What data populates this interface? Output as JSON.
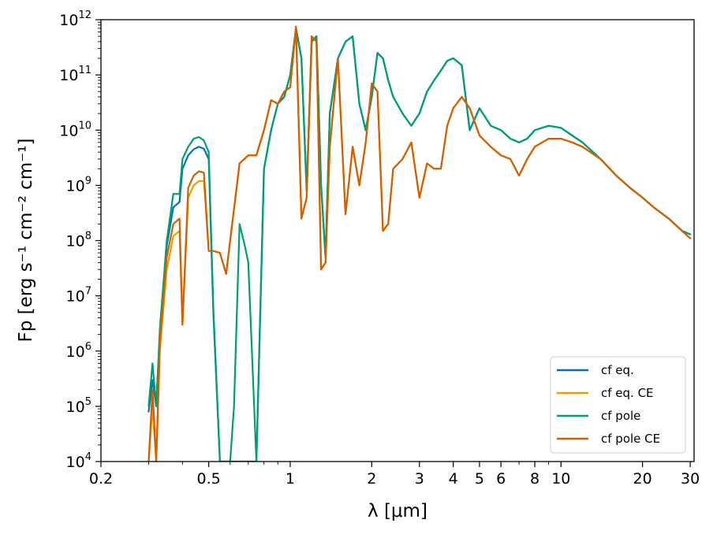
{
  "chart_data": {
    "type": "line",
    "title": "",
    "xlabel": "λ [μm]",
    "ylabel": "Fp [erg s⁻¹ cm⁻² cm⁻¹]",
    "xscale": "log",
    "yscale": "log",
    "xlim": [
      0.2,
      31
    ],
    "ylim": [
      10000,
      1000000000000
    ],
    "grid": false,
    "legend_position": "lower-right",
    "x_ticks": [
      0.2,
      0.5,
      1,
      2,
      3,
      4,
      5,
      6,
      8,
      10,
      20,
      30
    ],
    "x_tick_labels": [
      "0.2",
      "0.5",
      "1",
      "2",
      "3",
      "4",
      "5",
      "6",
      "8",
      "10",
      "20",
      "30"
    ],
    "y_tick_exponents": [
      4,
      5,
      6,
      7,
      8,
      9,
      10,
      11,
      12
    ],
    "y_tick_base": "10",
    "series": [
      {
        "name": "cf eq.",
        "color": "#0072B2",
        "x": [
          0.3,
          0.31,
          0.32,
          0.33,
          0.35,
          0.37,
          0.39,
          0.4,
          0.42,
          0.44,
          0.46,
          0.48,
          0.5,
          0.52,
          0.55,
          0.6,
          0.65,
          0.7,
          0.75,
          0.8,
          0.85,
          0.9,
          0.95,
          1.0,
          1.05,
          1.1,
          1.15,
          1.2,
          1.25,
          1.3,
          1.35,
          1.4,
          1.5,
          1.6,
          1.7,
          1.8,
          1.9,
          2.0,
          2.1,
          2.2,
          2.3,
          2.4,
          2.6,
          2.8,
          3.0,
          3.2,
          3.4,
          3.6,
          3.8,
          4.0,
          4.3,
          4.6,
          5.0,
          5.5,
          6.0,
          6.5,
          7.0,
          7.5,
          8.0,
          9.0,
          10.0,
          11.0,
          12.0,
          14.0,
          16.0,
          18.0,
          20.0,
          22.0,
          25.0,
          28.0,
          30.0
        ],
        "y": [
          80000,
          300000,
          100000,
          2000000,
          80000000,
          400000000,
          500000000,
          2000000000,
          3500000000,
          4500000000,
          5000000000,
          4600000000,
          3000000000,
          5000000,
          10000,
          10000,
          10000,
          10000,
          10000,
          2000000000,
          10000000000,
          30000000000,
          40000000000,
          100000000000,
          700000000000,
          200000000000,
          800000000,
          400000000000,
          500000000000,
          1000000000,
          50000000,
          20000000000,
          200000000000,
          400000000000,
          500000000000,
          30000000000,
          10000000000,
          40000000000,
          250000000000,
          200000000000,
          80000000000,
          40000000000,
          20000000000,
          12000000000,
          20000000000,
          50000000000,
          80000000000,
          120000000000,
          180000000000,
          200000000000,
          150000000000,
          10000000000,
          25000000000,
          12000000000,
          10000000000,
          7000000000,
          6000000000,
          7000000000,
          10000000000,
          12000000000,
          11000000000,
          8000000000,
          6000000000,
          3000000000,
          1500000000,
          900000000,
          600000000,
          400000000,
          250000000,
          150000000,
          130000000
        ]
      },
      {
        "name": "cf eq. CE",
        "color": "#E69F00",
        "x": [
          0.3,
          0.31,
          0.32,
          0.33,
          0.35,
          0.37,
          0.39,
          0.4,
          0.42,
          0.44,
          0.46,
          0.48,
          0.5,
          0.52,
          0.55,
          0.58,
          0.6,
          0.65,
          0.7,
          0.75,
          0.8,
          0.85,
          0.9,
          0.95,
          1.0,
          1.05,
          1.1,
          1.15,
          1.2,
          1.25,
          1.3,
          1.35,
          1.4,
          1.5,
          1.6,
          1.7,
          1.8,
          1.9,
          2.0,
          2.1,
          2.2,
          2.3,
          2.4,
          2.6,
          2.8,
          3.0,
          3.2,
          3.4,
          3.6,
          3.8,
          4.0,
          4.3,
          4.6,
          5.0,
          5.5,
          6.0,
          6.5,
          7.0,
          7.5,
          8.0,
          9.0,
          10.0,
          11.0,
          12.0,
          14.0,
          16.0,
          18.0,
          20.0,
          22.0,
          25.0,
          28.0,
          30.0
        ],
        "y": [
          10000,
          100000,
          10000,
          1000000,
          30000000,
          120000000,
          150000000,
          3000000,
          600000000,
          1000000000,
          1200000000,
          1200000000,
          65000000,
          65000000,
          60000000,
          25000000,
          100000000,
          2500000000,
          3500000000,
          3500000000,
          10000000000,
          35000000000,
          30000000000,
          50000000000,
          60000000000,
          700000000000,
          250000000,
          600000000,
          500000000000,
          400000000000,
          30000000,
          40000000,
          5000000000,
          200000000000,
          300000000,
          5000000000,
          1000000000,
          6000000000,
          70000000000,
          50000000000,
          150000000,
          200000000,
          2000000000,
          3000000000,
          6000000000,
          600000000,
          2500000000,
          2000000000,
          2000000000,
          12000000000,
          25000000000,
          40000000000,
          25000000000,
          8000000000,
          5000000000,
          3500000000,
          3000000000,
          1500000000,
          3000000000,
          5000000000,
          7000000000,
          7000000000,
          6000000000,
          5000000000,
          3000000000,
          1500000000,
          900000000,
          600000000,
          400000000,
          250000000,
          150000000,
          110000000
        ]
      },
      {
        "name": "cf pole",
        "color": "#009E73",
        "x": [
          0.3,
          0.31,
          0.32,
          0.33,
          0.35,
          0.37,
          0.39,
          0.4,
          0.42,
          0.44,
          0.46,
          0.48,
          0.5,
          0.52,
          0.55,
          0.6,
          0.62,
          0.65,
          0.68,
          0.7,
          0.75,
          0.8,
          0.85,
          0.9,
          0.95,
          1.0,
          1.05,
          1.1,
          1.15,
          1.2,
          1.25,
          1.3,
          1.35,
          1.4,
          1.5,
          1.6,
          1.7,
          1.8,
          1.9,
          2.0,
          2.1,
          2.2,
          2.3,
          2.4,
          2.6,
          2.8,
          3.0,
          3.2,
          3.4,
          3.6,
          3.8,
          4.0,
          4.3,
          4.6,
          5.0,
          5.5,
          6.0,
          6.5,
          7.0,
          7.5,
          8.0,
          9.0,
          10.0,
          11.0,
          12.0,
          14.0,
          16.0,
          18.0,
          20.0,
          22.0,
          25.0,
          28.0,
          30.0
        ],
        "y": [
          100000,
          600000,
          100000,
          2500000,
          100000000,
          700000000,
          700000000,
          3000000000,
          5000000000,
          7000000000,
          7500000000,
          6500000000,
          4000000000,
          6000000,
          10000,
          10000,
          100000,
          200000000,
          80000000,
          40000000,
          10000,
          2000000000,
          10000000000,
          30000000000,
          40000000000,
          100000000000,
          700000000000,
          200000000000,
          800000000,
          400000000000,
          500000000000,
          1000000000,
          50000000,
          20000000000,
          200000000000,
          400000000000,
          500000000000,
          30000000000,
          10000000000,
          40000000000,
          250000000000,
          200000000000,
          80000000000,
          40000000000,
          20000000000,
          12000000000,
          20000000000,
          50000000000,
          80000000000,
          120000000000,
          180000000000,
          200000000000,
          150000000000,
          10000000000,
          25000000000,
          12000000000,
          10000000000,
          7000000000,
          6000000000,
          7000000000,
          10000000000,
          12000000000,
          11000000000,
          8000000000,
          6000000000,
          3000000000,
          1500000000,
          900000000,
          600000000,
          400000000,
          250000000,
          150000000,
          130000000
        ]
      },
      {
        "name": "cf pole CE",
        "color": "#D55E00",
        "x": [
          0.3,
          0.31,
          0.32,
          0.33,
          0.35,
          0.37,
          0.39,
          0.4,
          0.42,
          0.44,
          0.46,
          0.48,
          0.5,
          0.52,
          0.55,
          0.58,
          0.6,
          0.65,
          0.7,
          0.75,
          0.8,
          0.85,
          0.9,
          0.95,
          1.0,
          1.05,
          1.1,
          1.15,
          1.2,
          1.25,
          1.3,
          1.35,
          1.4,
          1.5,
          1.6,
          1.7,
          1.8,
          1.9,
          2.0,
          2.1,
          2.2,
          2.3,
          2.4,
          2.6,
          2.8,
          3.0,
          3.2,
          3.4,
          3.6,
          3.8,
          4.0,
          4.3,
          4.6,
          5.0,
          5.5,
          6.0,
          6.5,
          7.0,
          7.5,
          8.0,
          9.0,
          10.0,
          11.0,
          12.0,
          14.0,
          16.0,
          18.0,
          20.0,
          22.0,
          25.0,
          28.0,
          30.0
        ],
        "y": [
          10000,
          200000,
          10000,
          1500000,
          50000000,
          200000000,
          250000000,
          3000000,
          900000000,
          1500000000,
          1800000000,
          1700000000,
          65000000,
          65000000,
          60000000,
          25000000,
          100000000,
          2500000000,
          3500000000,
          3500000000,
          10000000000,
          35000000000,
          30000000000,
          50000000000,
          60000000000,
          750000000000,
          250000000,
          600000000,
          500000000000,
          400000000000,
          30000000,
          40000000,
          5000000000,
          200000000000,
          300000000,
          5000000000,
          1000000000,
          6000000000,
          70000000000,
          50000000000,
          150000000,
          200000000,
          2000000000,
          3000000000,
          6000000000,
          600000000,
          2500000000,
          2000000000,
          2000000000,
          12000000000,
          25000000000,
          40000000000,
          25000000000,
          8000000000,
          5000000000,
          3500000000,
          3000000000,
          1500000000,
          3000000000,
          5000000000,
          7000000000,
          7000000000,
          6000000000,
          5000000000,
          3000000000,
          1500000000,
          900000000,
          600000000,
          400000000,
          250000000,
          150000000,
          110000000
        ]
      }
    ]
  }
}
